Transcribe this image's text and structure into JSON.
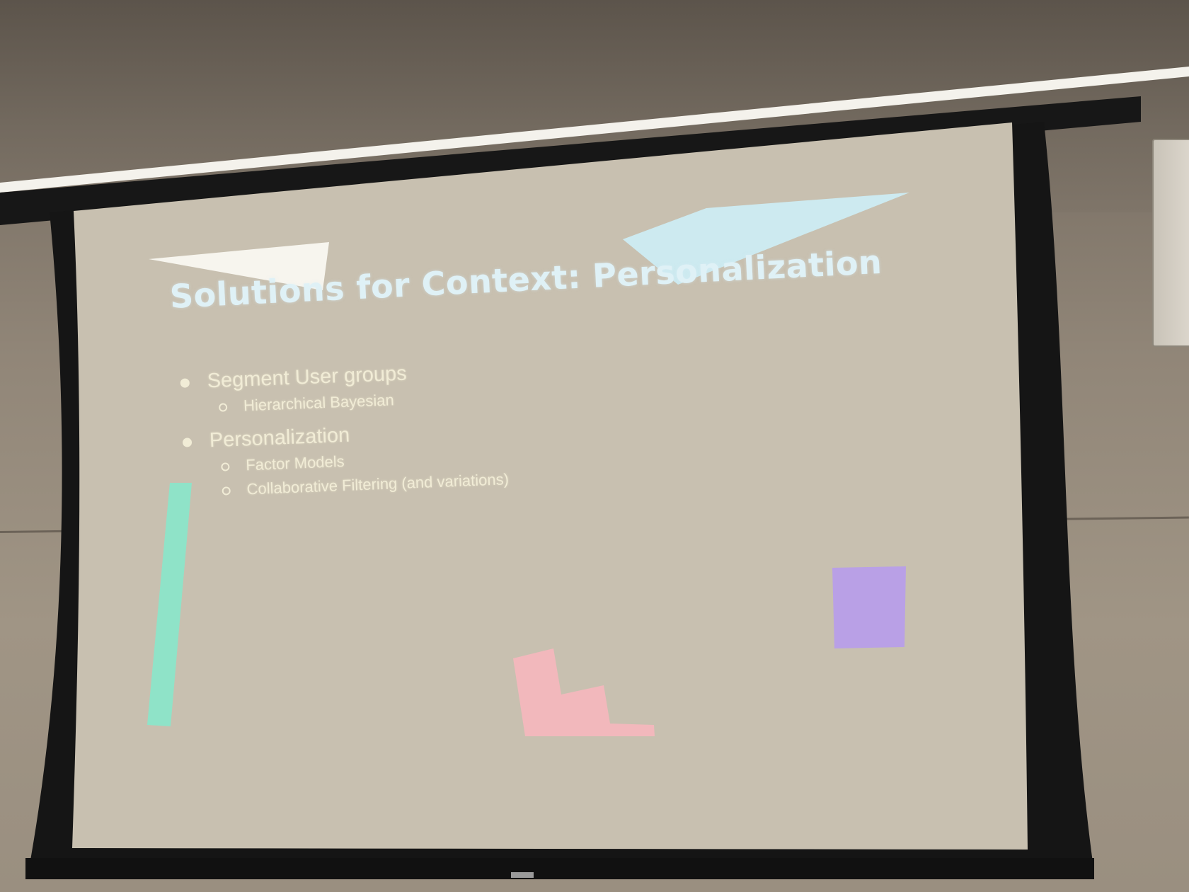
{
  "slide": {
    "title": "Solutions for Context: Personalization",
    "bullets": [
      {
        "text": "Segment User groups",
        "sub": [
          "Hierarchical Bayesian"
        ]
      },
      {
        "text": "Personalization",
        "sub": [
          "Factor Models",
          "Collaborative Filtering (and variations)"
        ]
      }
    ]
  },
  "colors": {
    "screen": "#c9c1b1",
    "title": "#dff1f6",
    "text": "#f1ecd6",
    "white_shape": "#f7f5ee",
    "cyan_shape": "#cdeaf0",
    "green_bar": "#8fe3c8",
    "purple_square": "#b9a0e6",
    "pink_shape": "#f2b8bc",
    "frame": "#141414"
  }
}
